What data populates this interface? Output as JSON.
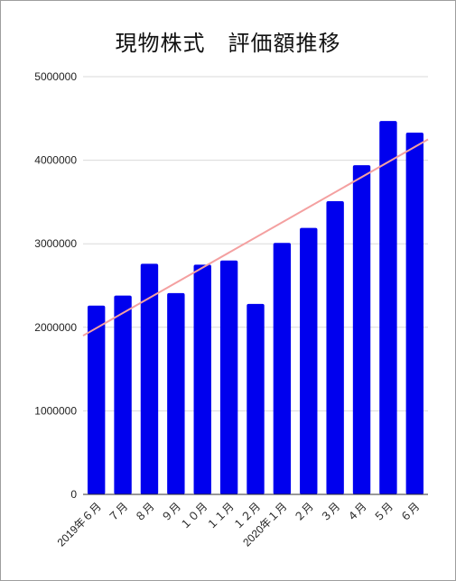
{
  "chart_data": {
    "type": "bar",
    "title": "現物株式　評価額推移",
    "categories": [
      "2019年６月",
      "７月",
      "８月",
      "９月",
      "１０月",
      "１１月",
      "１２月",
      "2020年１月",
      "２月",
      "３月",
      "４月",
      "５月",
      "６月"
    ],
    "series": [
      {
        "values": [
          2260000,
          2380000,
          2760000,
          2410000,
          2750000,
          2800000,
          2280000,
          3010000,
          3190000,
          3510000,
          3940000,
          4470000,
          4330000
        ],
        "color": "#0000ee"
      }
    ],
    "trendline": {
      "start": 1900000,
      "end": 4250000,
      "color": "#f4a0a0"
    },
    "yticks": [
      0,
      1000000,
      2000000,
      3000000,
      4000000,
      5000000
    ],
    "yticklabels": [
      "0",
      "1000000",
      "2000000",
      "3000000",
      "4000000",
      "5000000"
    ],
    "ylim": [
      0,
      5000000
    ],
    "grid": true
  }
}
